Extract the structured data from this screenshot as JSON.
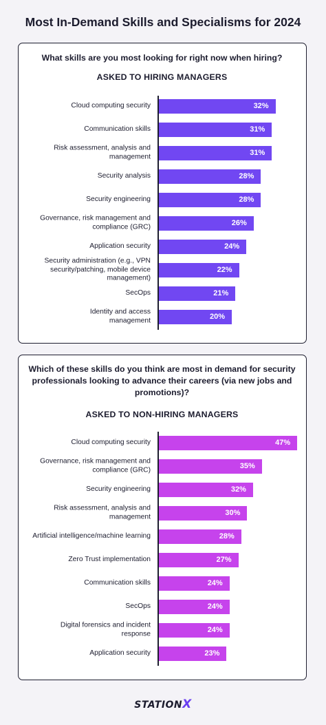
{
  "title": "Most In-Demand Skills and Specialisms for 2024",
  "logo": {
    "text": "STATION",
    "accent": "X"
  },
  "colors": {
    "chart1_bar": "#7147f2",
    "chart2_bar": "#c643ec"
  },
  "chart_data": [
    {
      "type": "bar",
      "orientation": "horizontal",
      "title": "What skills are you most looking for right now when hiring?",
      "subtitle": "ASKED TO HIRING MANAGERS",
      "categories": [
        "Cloud computing security",
        "Communication skills",
        "Risk assessment, analysis and management",
        "Security analysis",
        "Security engineering",
        "Governance, risk management and compliance (GRC)",
        "Application security",
        "Security administration (e.g., VPN security/patching, mobile device management)",
        "SecOps",
        "Identity and access management"
      ],
      "values": [
        32,
        31,
        31,
        28,
        28,
        26,
        24,
        22,
        21,
        20
      ],
      "value_labels": [
        "32%",
        "31%",
        "31%",
        "28%",
        "28%",
        "26%",
        "24%",
        "22%",
        "21%",
        "20%"
      ],
      "unit": "%",
      "xlim": [
        0,
        48
      ]
    },
    {
      "type": "bar",
      "orientation": "horizontal",
      "title": "Which of these skills do you think are most in demand for security professionals looking to advance their careers (via new jobs and promotions)?",
      "subtitle": "ASKED TO NON-HIRING MANAGERS",
      "categories": [
        "Cloud computing security",
        "Governance, risk management and compliance (GRC)",
        "Security engineering",
        "Risk assessment, analysis and management",
        "Artificial intelligence/machine learning",
        "Zero Trust implementation",
        "Communication skills",
        "SecOps",
        "Digital forensics and incident response",
        "Application security"
      ],
      "values": [
        47,
        35,
        32,
        30,
        28,
        27,
        24,
        24,
        24,
        23
      ],
      "value_labels": [
        "47%",
        "35%",
        "32%",
        "30%",
        "28%",
        "27%",
        "24%",
        "24%",
        "24%",
        "23%"
      ],
      "unit": "%",
      "xlim": [
        0,
        48
      ]
    }
  ]
}
